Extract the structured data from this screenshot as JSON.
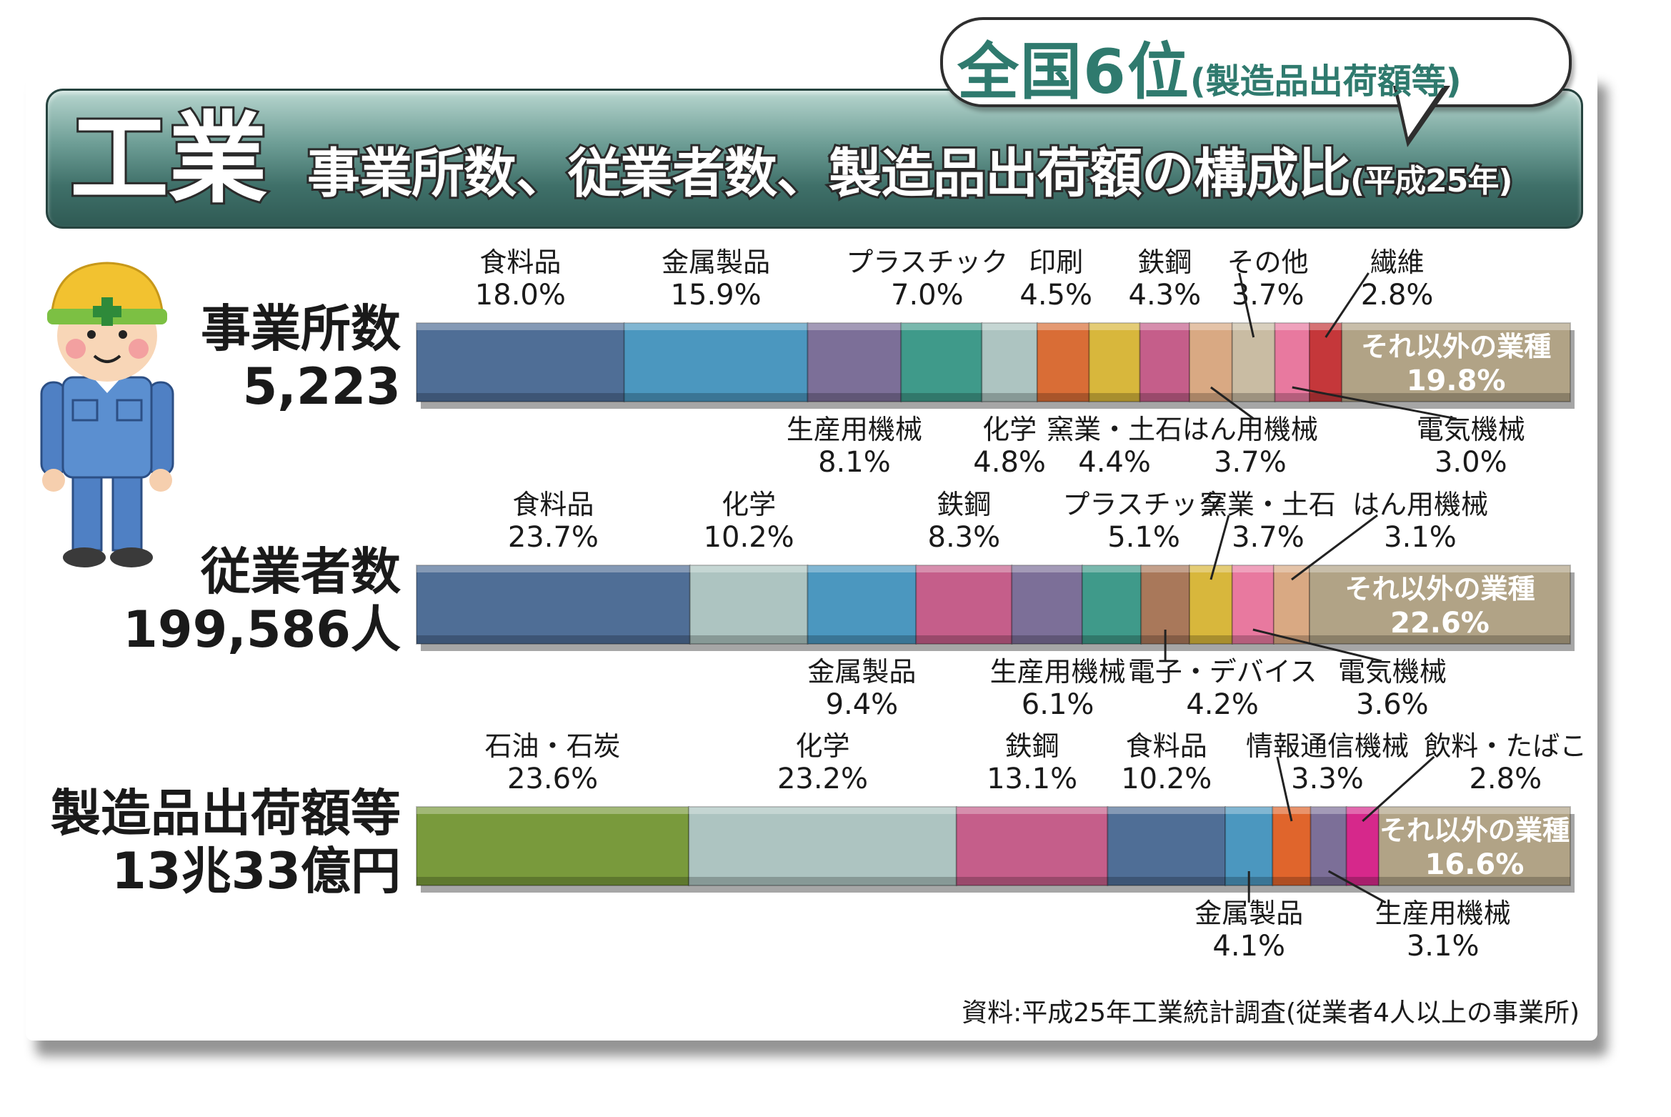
{
  "header": {
    "rank_main": "全国6位",
    "rank_sub": "(製造品出荷額等)",
    "sector": "工業",
    "subtitle": "事業所数、従業者数、製造品出荷額の構成比",
    "year": "(平成25年)"
  },
  "source": "資料:平成25年工業統計調査(従業者4人以上の事業所)",
  "colors": {
    "食料品": "#4f6e96",
    "金属製品": "#4b97bf",
    "生産用機械": "#7c6f98",
    "プラスチック": "#3f9a8a",
    "化学": "#adc4c1",
    "印刷": "#d96d36",
    "窯業・土石": "#d8b73c",
    "鉄鋼": "#c55e8a",
    "はん用機械": "#d9a983",
    "その他": "#c9bca3",
    "電気機械": "#e8799f",
    "繊維": "#c5373a",
    "電子・デバイス": "#a9785a",
    "石油・石炭": "#799a3c",
    "情報通信機械": "#e0652c",
    "飲料・たばこ": "#d6288b",
    "それ以外の業種": "#b1a386"
  },
  "chart_data": {
    "type": "bar",
    "orientation": "horizontal-stacked",
    "unit": "%",
    "rows": [
      {
        "name": "事業所数",
        "total": "5,223",
        "segments": [
          {
            "label": "食料品",
            "value": 18.0,
            "display": "18.0%"
          },
          {
            "label": "金属製品",
            "value": 15.9,
            "display": "15.9%"
          },
          {
            "label": "生産用機械",
            "value": 8.1,
            "display": "8.1%"
          },
          {
            "label": "プラスチック",
            "value": 7.0,
            "display": "7.0%"
          },
          {
            "label": "化学",
            "value": 4.8,
            "display": "4.8%"
          },
          {
            "label": "印刷",
            "value": 4.5,
            "display": "4.5%"
          },
          {
            "label": "窯業・土石",
            "value": 4.4,
            "display": "4.4%"
          },
          {
            "label": "鉄鋼",
            "value": 4.3,
            "display": "4.3%"
          },
          {
            "label": "はん用機械",
            "value": 3.7,
            "display": "3.7%"
          },
          {
            "label": "その他",
            "value": 3.7,
            "display": "3.7%"
          },
          {
            "label": "電気機械",
            "value": 3.0,
            "display": "3.0%"
          },
          {
            "label": "繊維",
            "value": 2.8,
            "display": "2.8%"
          },
          {
            "label": "それ以外の業種",
            "value": 19.8,
            "display": "19.8%"
          }
        ]
      },
      {
        "name": "従業者数",
        "total": "199,586人",
        "segments": [
          {
            "label": "食料品",
            "value": 23.7,
            "display": "23.7%"
          },
          {
            "label": "化学",
            "value": 10.2,
            "display": "10.2%"
          },
          {
            "label": "金属製品",
            "value": 9.4,
            "display": "9.4%"
          },
          {
            "label": "鉄鋼",
            "value": 8.3,
            "display": "8.3%"
          },
          {
            "label": "生産用機械",
            "value": 6.1,
            "display": "6.1%"
          },
          {
            "label": "プラスチック",
            "value": 5.1,
            "display": "5.1%"
          },
          {
            "label": "電子・デバイス",
            "value": 4.2,
            "display": "4.2%"
          },
          {
            "label": "窯業・土石",
            "value": 3.7,
            "display": "3.7%"
          },
          {
            "label": "電気機械",
            "value": 3.6,
            "display": "3.6%"
          },
          {
            "label": "はん用機械",
            "value": 3.1,
            "display": "3.1%"
          },
          {
            "label": "それ以外の業種",
            "value": 22.6,
            "display": "22.6%"
          }
        ]
      },
      {
        "name": "製造品出荷額等",
        "total": "13兆33億円",
        "segments": [
          {
            "label": "石油・石炭",
            "value": 23.6,
            "display": "23.6%"
          },
          {
            "label": "化学",
            "value": 23.2,
            "display": "23.2%"
          },
          {
            "label": "鉄鋼",
            "value": 13.1,
            "display": "13.1%"
          },
          {
            "label": "食料品",
            "value": 10.2,
            "display": "10.2%"
          },
          {
            "label": "金属製品",
            "value": 4.1,
            "display": "4.1%"
          },
          {
            "label": "情報通信機械",
            "value": 3.3,
            "display": "3.3%"
          },
          {
            "label": "生産用機械",
            "value": 3.1,
            "display": "3.1%"
          },
          {
            "label": "飲料・たばこ",
            "value": 2.8,
            "display": "2.8%"
          },
          {
            "label": "それ以外の業種",
            "value": 16.6,
            "display": "16.6%"
          }
        ]
      }
    ]
  }
}
